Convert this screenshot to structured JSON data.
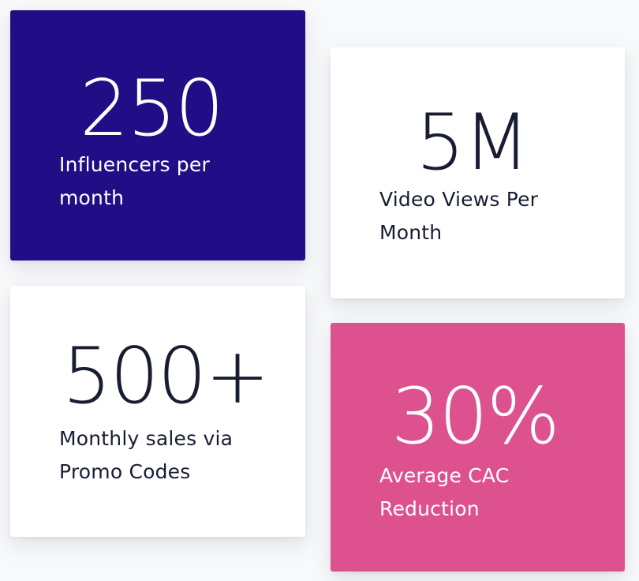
{
  "stats": [
    {
      "value": "250",
      "label": "Influencers per month",
      "bg": "#210e87",
      "fg": "#ffffff"
    },
    {
      "value": "5M",
      "label": "Video Views Per Month",
      "bg": "#ffffff",
      "fg": "#181d33"
    },
    {
      "value": "500+",
      "label": "Monthly sales via Promo Codes",
      "bg": "#ffffff",
      "fg": "#181d33"
    },
    {
      "value": "30%",
      "label": "Average CAC Reduction",
      "bg": "#dd528e",
      "fg": "#ffffff"
    }
  ]
}
